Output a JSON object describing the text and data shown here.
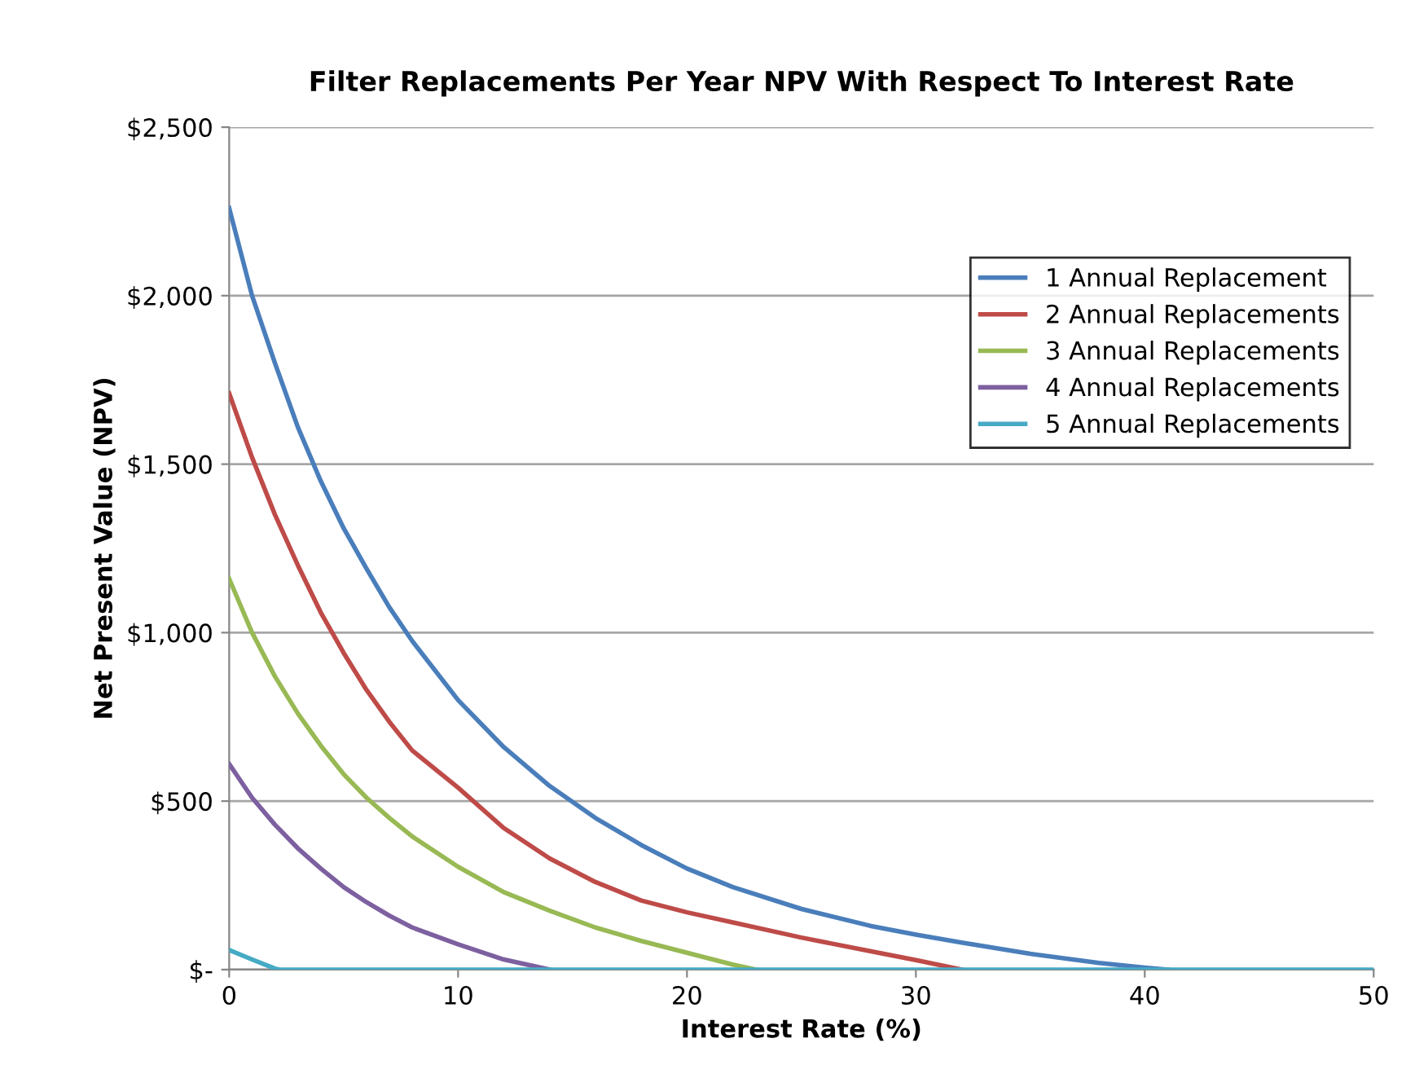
{
  "chart_data": {
    "type": "line",
    "title": "Filter Replacements Per Year NPV With Respect To Interest Rate",
    "xlabel": "Interest Rate (%)",
    "ylabel": "Net Present Value (NPV)",
    "xlim": [
      0,
      50
    ],
    "xticks": [
      0,
      10,
      20,
      30,
      40,
      50
    ],
    "ylim": [
      0,
      2500
    ],
    "yticks": [
      {
        "value": 0,
        "label": "$-"
      },
      {
        "value": 500,
        "label": "$500"
      },
      {
        "value": 1000,
        "label": "$1,000"
      },
      {
        "value": 1500,
        "label": "$1,500"
      },
      {
        "value": 2000,
        "label": "$2,000"
      },
      {
        "value": 2500,
        "label": "$2,500"
      }
    ],
    "grid": "y",
    "legend": "top right",
    "marker": "none",
    "line_style": "solid",
    "series": [
      {
        "name": "1 Annual Replacement",
        "color": "#4a7ebb",
        "x": [
          0,
          1,
          2,
          3,
          4,
          5,
          6,
          7,
          8,
          10,
          12,
          14,
          16,
          18,
          20,
          22,
          25,
          28,
          30,
          32,
          35,
          38,
          40,
          41
        ],
        "values": [
          2260,
          2000,
          1800,
          1610,
          1450,
          1310,
          1190,
          1075,
          975,
          800,
          660,
          545,
          450,
          370,
          300,
          245,
          180,
          130,
          104,
          80,
          47,
          20,
          6,
          0
        ]
      },
      {
        "name": "2 Annual Replacements",
        "color": "#be4b48",
        "x": [
          0,
          1,
          2,
          3,
          4,
          5,
          6,
          7,
          8,
          10,
          12,
          14,
          16,
          18,
          20,
          22,
          25,
          28,
          30,
          32
        ],
        "values": [
          1710,
          1520,
          1350,
          1200,
          1060,
          940,
          830,
          735,
          650,
          540,
          420,
          330,
          260,
          205,
          170,
          140,
          95,
          55,
          28,
          0
        ]
      },
      {
        "name": "3 Annual Replacements",
        "color": "#98b954",
        "x": [
          0,
          1,
          2,
          3,
          4,
          5,
          6,
          7,
          8,
          10,
          12,
          14,
          16,
          18,
          20,
          22,
          23
        ],
        "values": [
          1160,
          1000,
          870,
          760,
          665,
          580,
          510,
          450,
          395,
          305,
          230,
          175,
          125,
          85,
          50,
          15,
          0
        ]
      },
      {
        "name": "4 Annual Replacements",
        "color": "#7d60a0",
        "x": [
          0,
          1,
          2,
          3,
          4,
          5,
          6,
          7,
          8,
          10,
          12,
          14
        ],
        "values": [
          610,
          510,
          430,
          360,
          300,
          245,
          200,
          160,
          125,
          75,
          30,
          0
        ]
      },
      {
        "name": "5 Annual Replacements",
        "color": "#46aac5",
        "x": [
          0,
          1,
          2,
          2.2,
          10,
          20,
          30,
          40,
          50
        ],
        "values": [
          58,
          30,
          3,
          0,
          0,
          0,
          0,
          0,
          0
        ]
      }
    ]
  }
}
